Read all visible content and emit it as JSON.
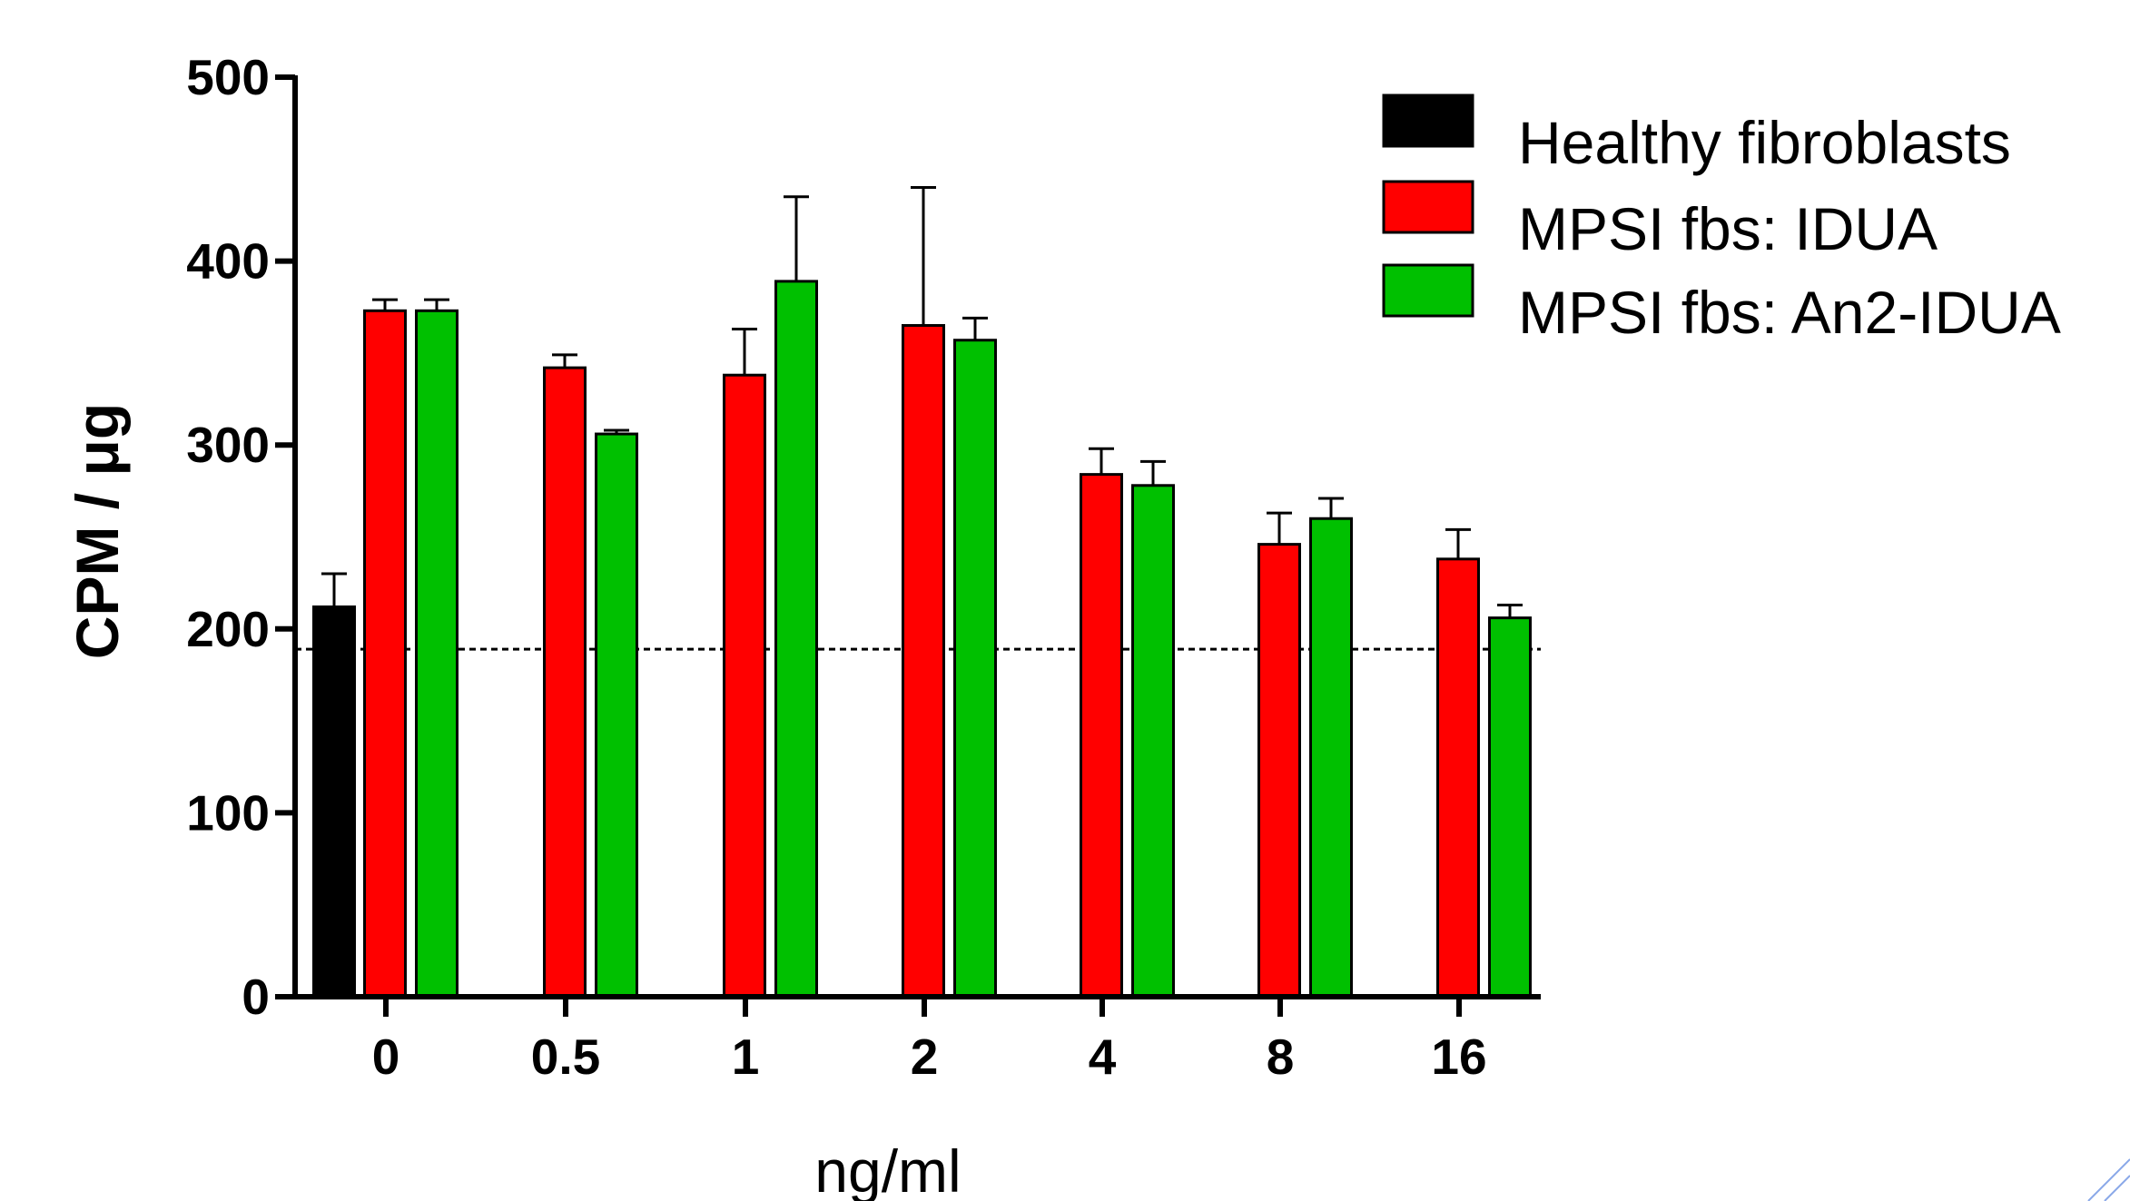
{
  "chart_data": {
    "type": "bar",
    "xlabel": "ng/ml",
    "ylabel": "CPM / μg",
    "ylim": [
      0,
      500
    ],
    "yticks": [
      0,
      100,
      200,
      300,
      400,
      500
    ],
    "categories": [
      "0",
      "0.5",
      "1",
      "2",
      "4",
      "8",
      "16"
    ],
    "reference_line": {
      "y": 189,
      "style": "dashed"
    },
    "legend_position": "top-right",
    "series": [
      {
        "name": "Healthy fibroblasts",
        "color": "#000000",
        "values": [
          212,
          null,
          null,
          null,
          null,
          null,
          null
        ],
        "errors": [
          18,
          null,
          null,
          null,
          null,
          null,
          null
        ]
      },
      {
        "name": "MPSI fbs: IDUA",
        "color": "#ff0000",
        "values": [
          373,
          342,
          338,
          365,
          284,
          246,
          238
        ],
        "errors": [
          6,
          7,
          25,
          75,
          14,
          17,
          16
        ]
      },
      {
        "name": "MPSI fbs: An2-IDUA",
        "color": "#00c000",
        "values": [
          373,
          306,
          389,
          357,
          278,
          260,
          206
        ],
        "errors": [
          6,
          2,
          46,
          12,
          13,
          11,
          7
        ]
      }
    ]
  }
}
